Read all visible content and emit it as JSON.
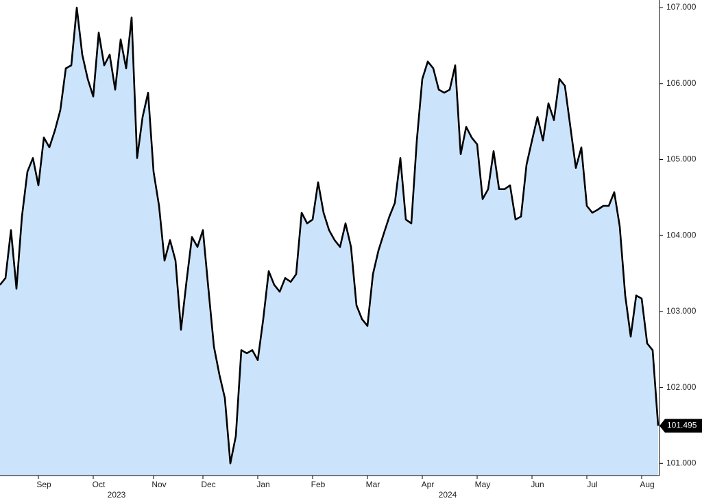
{
  "chart_data": {
    "type": "area",
    "categories": [
      null,
      null,
      null,
      null,
      null,
      null,
      null,
      null,
      "Sep",
      null,
      null,
      null,
      null,
      null,
      null,
      null,
      null,
      null,
      "Oct",
      null,
      null,
      null,
      null,
      null,
      null,
      null,
      null,
      null,
      null,
      "Nov",
      null,
      null,
      null,
      null,
      null,
      null,
      null,
      null,
      "Dec",
      null,
      null,
      null,
      null,
      null,
      null,
      null,
      null,
      null,
      "Jan",
      null,
      null,
      null,
      null,
      null,
      null,
      null,
      null,
      null,
      "Feb",
      null,
      null,
      null,
      null,
      null,
      null,
      null,
      null,
      null,
      "Mar",
      null,
      null,
      null,
      null,
      null,
      null,
      null,
      null,
      null,
      "Apr",
      null,
      null,
      null,
      null,
      null,
      null,
      null,
      null,
      null,
      "May",
      null,
      null,
      null,
      null,
      null,
      null,
      null,
      null,
      null,
      "Jun",
      null,
      null,
      null,
      null,
      null,
      null,
      null,
      null,
      null,
      "Jul",
      null,
      null,
      null,
      null,
      null,
      null,
      null,
      null,
      null,
      "Aug",
      null,
      null
    ],
    "values": [
      103.35,
      103.44,
      104.07,
      103.3,
      104.25,
      104.84,
      105.02,
      104.66,
      105.29,
      105.16,
      105.38,
      105.65,
      106.2,
      106.24,
      107.0,
      106.38,
      106.06,
      105.83,
      106.67,
      106.24,
      106.38,
      105.92,
      106.58,
      106.2,
      106.87,
      105.02,
      105.56,
      105.88,
      104.84,
      104.39,
      103.67,
      103.94,
      103.67,
      102.76,
      103.39,
      103.98,
      103.85,
      104.07,
      103.3,
      102.54,
      102.17,
      101.86,
      101.0,
      101.36,
      102.49,
      102.45,
      102.49,
      102.36,
      102.9,
      103.53,
      103.35,
      103.26,
      103.44,
      103.39,
      103.49,
      104.3,
      104.16,
      104.21,
      104.7,
      104.3,
      104.07,
      103.94,
      103.85,
      104.16,
      103.85,
      103.08,
      102.9,
      102.81,
      103.49,
      103.8,
      104.03,
      104.25,
      104.43,
      105.02,
      104.21,
      104.16,
      105.25,
      106.06,
      106.29,
      106.2,
      105.92,
      105.88,
      105.92,
      106.24,
      105.07,
      105.43,
      105.29,
      105.2,
      104.48,
      104.61,
      105.11,
      104.61,
      104.61,
      104.66,
      104.21,
      104.25,
      104.93,
      105.25,
      105.56,
      105.25,
      105.74,
      105.52,
      106.06,
      105.97,
      105.43,
      104.89,
      105.16,
      104.39,
      104.3,
      104.34,
      104.39,
      104.39,
      104.57,
      104.12,
      103.21,
      102.67,
      103.21,
      103.17,
      102.58,
      102.49,
      101.495
    ],
    "last_value_label": "101.495",
    "year_labels": [
      "2023",
      "2024"
    ],
    "color": "#000000",
    "fill_color": "#cce4fb",
    "ylim": [
      100.84,
      107.1
    ],
    "yticks": [
      {
        "value": 101,
        "label": "101.000"
      },
      {
        "value": 102,
        "label": "102.000"
      },
      {
        "value": 103,
        "label": "103.000"
      },
      {
        "value": 104,
        "label": "104.000"
      },
      {
        "value": 105,
        "label": "105.000"
      },
      {
        "value": 106,
        "label": "106.000"
      },
      {
        "value": 107,
        "label": "107.000"
      }
    ],
    "y_axis_side": "right"
  }
}
